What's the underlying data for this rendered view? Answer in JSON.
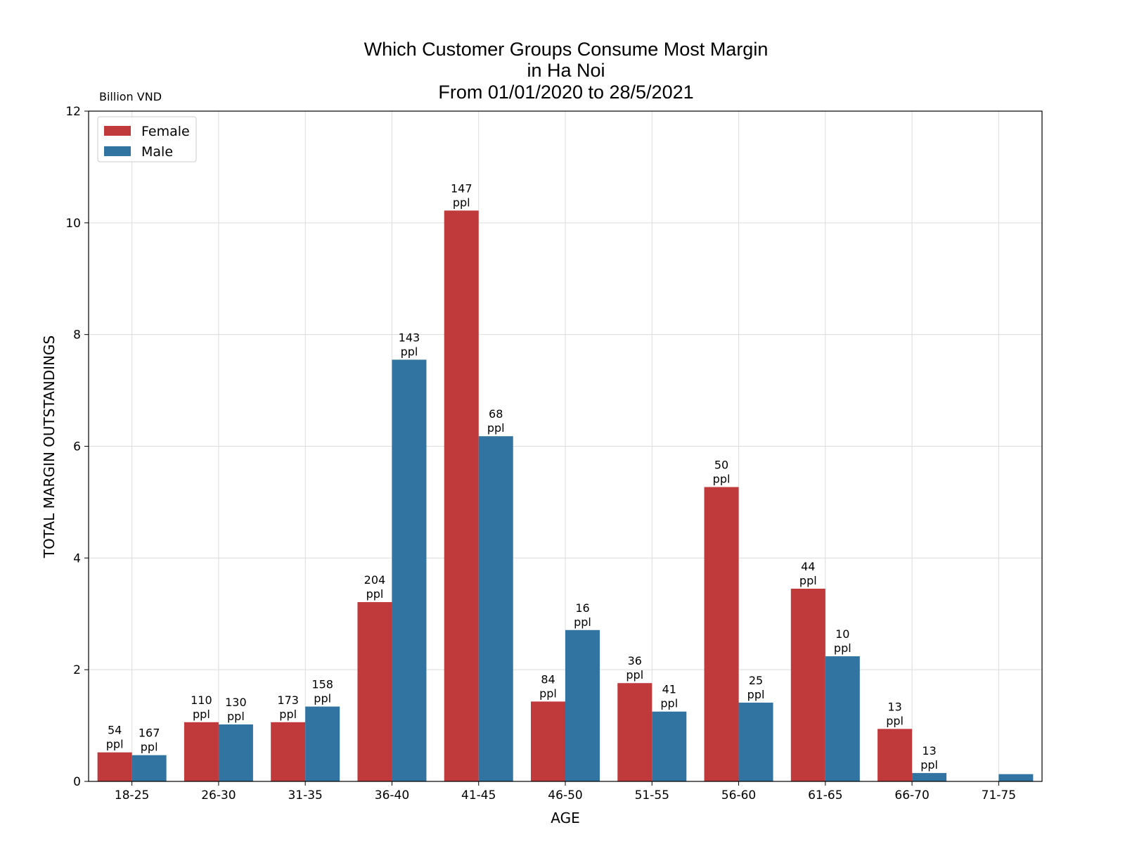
{
  "chart_data": {
    "type": "bar",
    "title_lines": [
      "Which Customer Groups Consume Most Margin",
      "in Ha Noi",
      "From 01/01/2020 to 28/5/2021"
    ],
    "unit_label": "Billion VND",
    "xlabel": "AGE",
    "ylabel": "TOTAL MARGIN OUTSTANDINGS",
    "ylim": [
      0,
      12
    ],
    "yticks": [
      0,
      2,
      4,
      6,
      8,
      10,
      12
    ],
    "grid": true,
    "legend_position": "top-left",
    "categories": [
      "18-25",
      "26-30",
      "31-35",
      "36-40",
      "41-45",
      "46-50",
      "51-55",
      "56-60",
      "61-65",
      "66-70",
      "71-75"
    ],
    "series": [
      {
        "name": "Female",
        "color": "#c0393b",
        "values": [
          0.52,
          1.06,
          1.06,
          3.21,
          10.22,
          1.43,
          1.76,
          5.27,
          3.45,
          0.94,
          null
        ],
        "labels": [
          "54\nppl",
          "110\nppl",
          "173\nppl",
          "204\nppl",
          "147\nppl",
          "84\nppl",
          "36\nppl",
          "50\nppl",
          "44\nppl",
          "13\nppl",
          ""
        ]
      },
      {
        "name": "Male",
        "color": "#3274a1",
        "values": [
          0.47,
          1.02,
          1.34,
          7.55,
          6.18,
          2.71,
          1.25,
          1.41,
          2.24,
          0.15,
          0.13
        ],
        "labels": [
          "167\nppl",
          "130\nppl",
          "158\nppl",
          "143\nppl",
          "68\nppl",
          "16\nppl",
          "41\nppl",
          "25\nppl",
          "10\nppl",
          "13\nppl",
          ""
        ]
      }
    ]
  }
}
